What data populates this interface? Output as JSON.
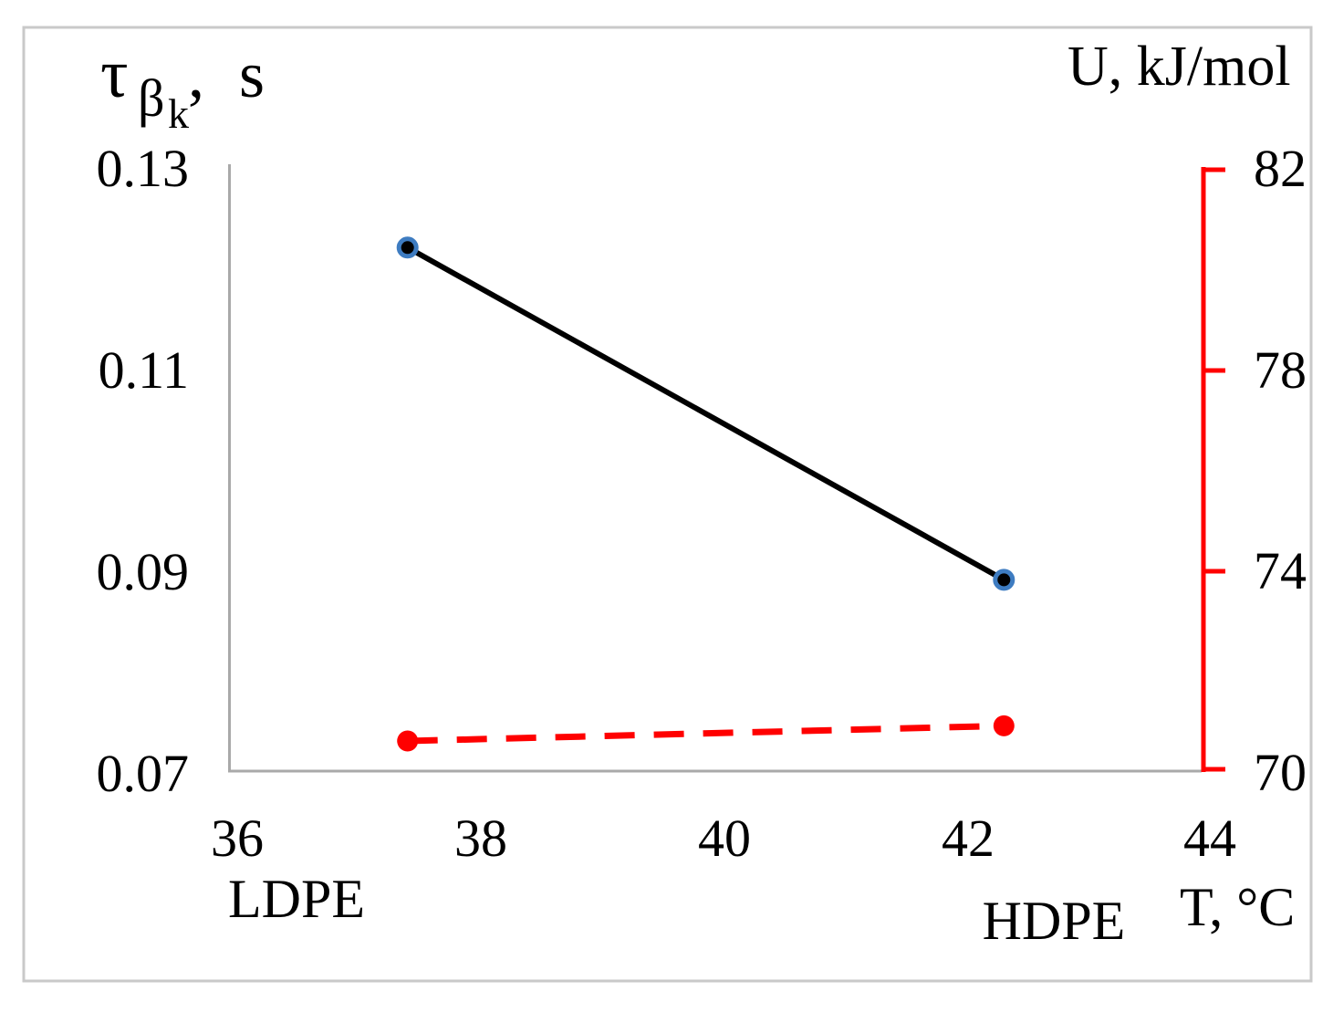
{
  "chart_data": {
    "type": "line",
    "grid": false,
    "legend": false,
    "x_axis": {
      "label": "T, °C",
      "tick_labels": [
        "36",
        "38",
        "40",
        "42",
        "44"
      ],
      "range": [
        36,
        44
      ]
    },
    "left_y_axis": {
      "label_symbol": "τ",
      "label_subscript": "β",
      "label_subsubscript": "k",
      "label_suffix": ", s",
      "tick_labels": [
        "0.13",
        "0.11",
        "0.09",
        "0.07"
      ],
      "range": [
        0.07,
        0.13
      ],
      "axis_color": "#a9a9a9"
    },
    "right_y_axis": {
      "label": "U, kJ/mol",
      "tick_labels": [
        "82",
        "78",
        "74",
        "70"
      ],
      "range": [
        70,
        82
      ],
      "axis_color": "#ff0000"
    },
    "series": [
      {
        "id": "tau",
        "name": "τβk",
        "axis": "left",
        "style": "solid",
        "line_color": "#000000",
        "marker": "circle",
        "marker_fill": "#000000",
        "marker_edge": "#3e7cc1",
        "points": [
          {
            "x": 37.4,
            "y": 0.122
          },
          {
            "x": 42.3,
            "y": 0.089
          }
        ]
      },
      {
        "id": "U",
        "name": "U",
        "axis": "right",
        "style": "dashed",
        "line_color": "#ff0000",
        "marker": "circle",
        "marker_fill": "#ff0000",
        "marker_edge": "#ff0000",
        "points": [
          {
            "x": 37.4,
            "y": 70.6
          },
          {
            "x": 42.3,
            "y": 70.9
          }
        ]
      }
    ],
    "annotations": [
      {
        "text": "LDPE"
      },
      {
        "text": "HDPE"
      }
    ]
  }
}
